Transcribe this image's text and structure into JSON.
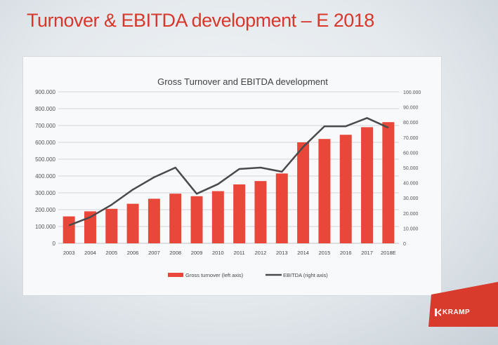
{
  "slide": {
    "title": "Turnover & EBITDA development – E 2018",
    "logo_text": "KRAMP"
  },
  "colors": {
    "accent": "#d8372b",
    "bar": "#e8473a",
    "line": "#4a4a4a",
    "logo_red": "#d83a2c"
  },
  "chart_data": {
    "type": "bar",
    "title": "Gross Turnover and EBITDA development",
    "xlabel": "",
    "ylabel": "",
    "categories": [
      "2003",
      "2004",
      "2005",
      "2006",
      "2007",
      "2008",
      "2009",
      "2010",
      "2011",
      "2012",
      "2013",
      "2014",
      "2015",
      "2016",
      "2017",
      "2018E"
    ],
    "series": [
      {
        "name": "Gross turnover (left axis)",
        "type": "bar",
        "axis": "left",
        "values": [
          160000,
          190000,
          205000,
          235000,
          265000,
          295000,
          280000,
          310000,
          350000,
          370000,
          415000,
          600000,
          620000,
          645000,
          690000,
          720000
        ]
      },
      {
        "name": "EBITDA (right axis)",
        "type": "line",
        "axis": "right",
        "values": [
          13000,
          19000,
          28000,
          39000,
          48000,
          55000,
          36000,
          43000,
          54000,
          55000,
          52000,
          70000,
          85000,
          85000,
          91000,
          84000
        ]
      }
    ],
    "left_axis": {
      "ylim": [
        0,
        900000
      ],
      "ticks": [
        "0",
        "100.000",
        "200.000",
        "300.000",
        "400.000",
        "500.000",
        "600.000",
        "700.000",
        "800.000",
        "900.000"
      ]
    },
    "right_axis": {
      "ylim": [
        0,
        110000
      ],
      "ticks": [
        "0",
        "10.000",
        "20.000",
        "30.000",
        "40.000",
        "50.000",
        "60.000",
        "70.000",
        "80.000",
        "90.000",
        "100.000"
      ]
    },
    "grid": true,
    "legend": "bottom"
  }
}
